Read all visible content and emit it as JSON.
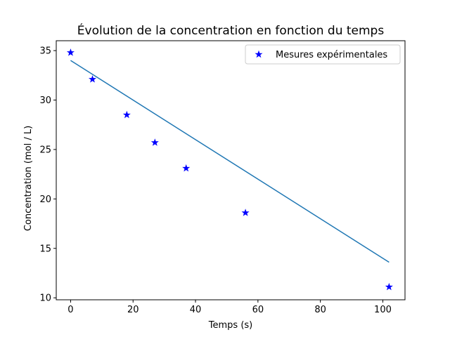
{
  "chart_data": {
    "type": "scatter",
    "title": "Évolution de la concentration en fonction du temps",
    "xlabel": "Temps (s)",
    "ylabel": "Concentration (mol / L)",
    "xlim": [
      -4.6,
      107.1
    ],
    "ylim": [
      9.8,
      36.0
    ],
    "xticks": [
      0,
      20,
      40,
      60,
      80,
      100
    ],
    "yticks": [
      10,
      15,
      20,
      25,
      30,
      35
    ],
    "grid": false,
    "legend_position": "top-right",
    "series": [
      {
        "name": "Mesures expérimentales",
        "kind": "scatter",
        "marker": "star",
        "color": "#0000ff",
        "x": [
          0,
          7,
          18,
          27,
          37,
          56,
          102
        ],
        "y": [
          34.8,
          32.1,
          28.5,
          25.7,
          23.1,
          18.6,
          11.1
        ]
      },
      {
        "kind": "line",
        "color": "#1f77b4",
        "x": [
          0,
          102
        ],
        "y": [
          34.0,
          13.6
        ]
      }
    ]
  }
}
